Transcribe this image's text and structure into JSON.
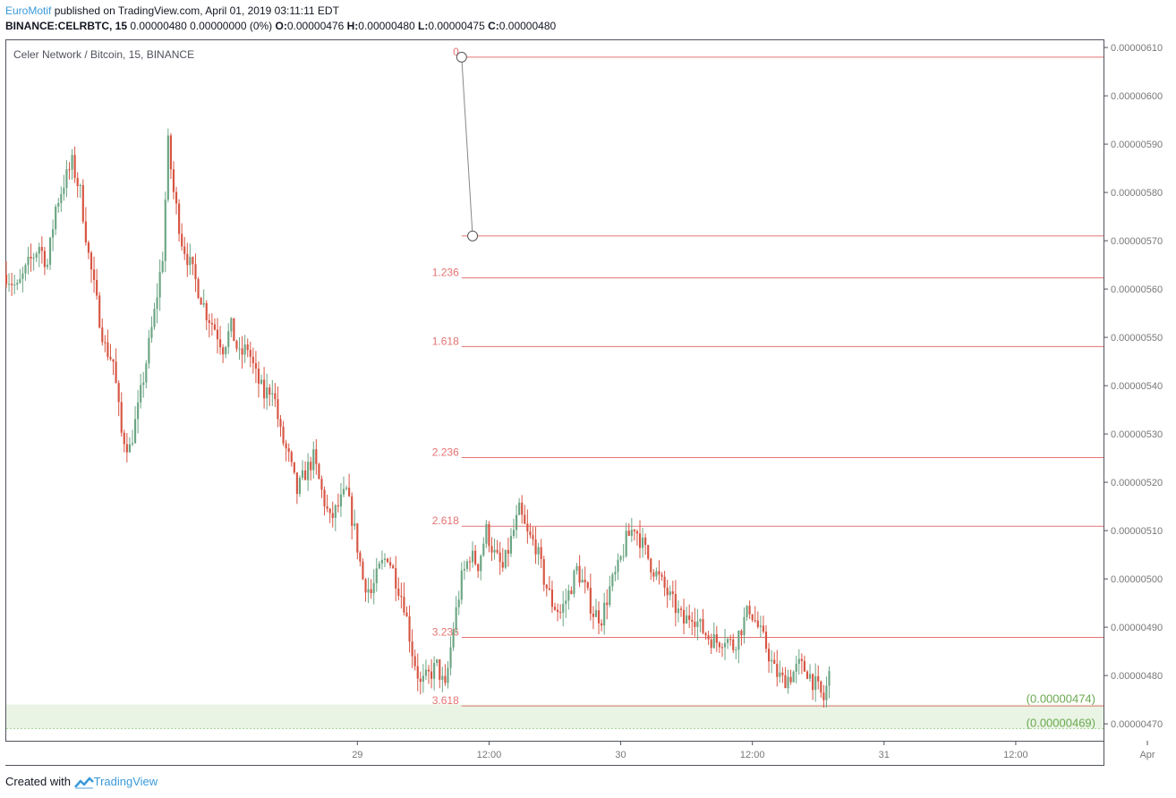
{
  "header": {
    "author": "EuroMotif",
    "published_text": "published on TradingView.com, April 01, 2019 03:11:11 EDT",
    "symbol_line": "BINANCE:CELRBTC, 15",
    "change_text": "0.00000480 0.00000000 (0%)",
    "o_label": "O:",
    "o_value": "0.00000476",
    "h_label": "H:",
    "h_value": "0.00000480",
    "l_label": "L:",
    "l_value": "0.00000475",
    "c_label": "C:",
    "c_value": "0.00000480"
  },
  "footer": {
    "created_with": "Created with",
    "brand": "TradingView"
  },
  "colors": {
    "up": "#6ba583",
    "down": "#d75442",
    "fib": "#e57373",
    "zone": "#e9f4e4",
    "zone_text": "#6aa84f",
    "axis": "#787878"
  },
  "chart_data": {
    "type": "candlestick",
    "title": "Celer Network / Bitcoin, 15, BINANCE",
    "ylim": [
      4.665e-06,
      6.115e-06
    ],
    "y_ticks": [
      "0.00000610",
      "0.00000600",
      "0.00000590",
      "0.00000580",
      "0.00000570",
      "0.00000560",
      "0.00000550",
      "0.00000540",
      "0.00000530",
      "0.00000520",
      "0.00000510",
      "0.00000500",
      "0.00000490",
      "0.00000480",
      "0.00000470"
    ],
    "x_tick_labels": [
      "29",
      "12:00",
      "30",
      "12:00",
      "31",
      "12:00",
      "Apr",
      "12:00"
    ],
    "x_tick_bars": [
      128,
      176,
      224,
      272,
      320,
      368,
      416,
      464
    ],
    "total_bars": 400,
    "fib_extension": {
      "levels": [
        {
          "label": "0",
          "price": 6.08e-06
        },
        {
          "label": "",
          "price": 5.71e-06
        },
        {
          "label": "1.236",
          "price": 5.623e-06
        },
        {
          "label": "1.618",
          "price": 5.481e-06
        },
        {
          "label": "2.236",
          "price": 5.251e-06
        },
        {
          "label": "2.618",
          "price": 5.109e-06
        },
        {
          "label": "3.236",
          "price": 4.879e-06
        },
        {
          "label": "3.618",
          "price": 4.737e-06
        }
      ],
      "anchor_points": [
        {
          "bar": 166,
          "price": 6.08e-06
        },
        {
          "bar": 170,
          "price": 5.71e-06
        }
      ],
      "start_bar": 166
    },
    "target_zone": {
      "high": 4.74e-06,
      "low": 4.69e-06,
      "labels": [
        "(0.00000474)",
        "(0.00000469)"
      ]
    },
    "close_path": [
      [
        0,
        5.63e-06
      ],
      [
        4,
        5.6e-06
      ],
      [
        8,
        5.65e-06
      ],
      [
        12,
        5.69e-06
      ],
      [
        15,
        5.65e-06
      ],
      [
        18,
        5.77e-06
      ],
      [
        21,
        5.82e-06
      ],
      [
        24,
        5.86e-06
      ],
      [
        27,
        5.8e-06
      ],
      [
        30,
        5.67e-06
      ],
      [
        33,
        5.57e-06
      ],
      [
        36,
        5.48e-06
      ],
      [
        39,
        5.45e-06
      ],
      [
        42,
        5.3e-06
      ],
      [
        45,
        5.27e-06
      ],
      [
        48,
        5.35e-06
      ],
      [
        51,
        5.45e-06
      ],
      [
        54,
        5.55e-06
      ],
      [
        57,
        5.67e-06
      ],
      [
        59,
        5.9e-06
      ],
      [
        61,
        5.8e-06
      ],
      [
        64,
        5.7e-06
      ],
      [
        67,
        5.65e-06
      ],
      [
        70,
        5.6e-06
      ],
      [
        73,
        5.55e-06
      ],
      [
        76,
        5.52e-06
      ],
      [
        79,
        5.48e-06
      ],
      [
        82,
        5.52e-06
      ],
      [
        85,
        5.46e-06
      ],
      [
        88,
        5.48e-06
      ],
      [
        91,
        5.42e-06
      ],
      [
        94,
        5.38e-06
      ],
      [
        97,
        5.4e-06
      ],
      [
        100,
        5.3e-06
      ],
      [
        103,
        5.25e-06
      ],
      [
        106,
        5.18e-06
      ],
      [
        109,
        5.22e-06
      ],
      [
        112,
        5.25e-06
      ],
      [
        115,
        5.18e-06
      ],
      [
        118,
        5.12e-06
      ],
      [
        121,
        5.15e-06
      ],
      [
        124,
        5.18e-06
      ],
      [
        127,
        5.1e-06
      ],
      [
        130,
        5e-06
      ],
      [
        133,
        4.97e-06
      ],
      [
        136,
        5.02e-06
      ],
      [
        139,
        5.05e-06
      ],
      [
        142,
        5e-06
      ],
      [
        145,
        4.95e-06
      ],
      [
        148,
        4.85e-06
      ],
      [
        151,
        4.78e-06
      ],
      [
        154,
        4.8e-06
      ],
      [
        157,
        4.82e-06
      ],
      [
        160,
        4.77e-06
      ],
      [
        163,
        4.9e-06
      ],
      [
        166,
        5e-06
      ],
      [
        169,
        5.05e-06
      ],
      [
        172,
        5.03e-06
      ],
      [
        175,
        5.1e-06
      ],
      [
        178,
        5.05e-06
      ],
      [
        181,
        5.02e-06
      ],
      [
        184,
        5.08e-06
      ],
      [
        187,
        5.14e-06
      ],
      [
        190,
        5.09e-06
      ],
      [
        193,
        5.07e-06
      ],
      [
        196,
        5e-06
      ],
      [
        199,
        4.95e-06
      ],
      [
        202,
        4.93e-06
      ],
      [
        205,
        4.97e-06
      ],
      [
        208,
        5.02e-06
      ],
      [
        211,
        4.98e-06
      ],
      [
        214,
        4.93e-06
      ],
      [
        217,
        4.92e-06
      ],
      [
        220,
        4.98e-06
      ],
      [
        223,
        5.02e-06
      ],
      [
        226,
        5.08e-06
      ],
      [
        229,
        5.11e-06
      ],
      [
        232,
        5.07e-06
      ],
      [
        235,
        5.03e-06
      ],
      [
        238,
        5e-06
      ],
      [
        241,
        4.97e-06
      ],
      [
        244,
        4.94e-06
      ],
      [
        247,
        4.91e-06
      ],
      [
        250,
        4.93e-06
      ],
      [
        253,
        4.9e-06
      ],
      [
        256,
        4.88e-06
      ],
      [
        259,
        4.87e-06
      ],
      [
        262,
        4.88e-06
      ],
      [
        265,
        4.86e-06
      ],
      [
        268,
        4.9e-06
      ],
      [
        271,
        4.94e-06
      ],
      [
        274,
        4.9e-06
      ],
      [
        277,
        4.86e-06
      ],
      [
        280,
        4.81e-06
      ],
      [
        283,
        4.79e-06
      ],
      [
        286,
        4.8e-06
      ],
      [
        289,
        4.82e-06
      ],
      [
        292,
        4.81e-06
      ],
      [
        295,
        4.78e-06
      ],
      [
        298,
        4.75e-06
      ],
      [
        300,
        4.8e-06
      ]
    ],
    "last_bar": 300
  }
}
